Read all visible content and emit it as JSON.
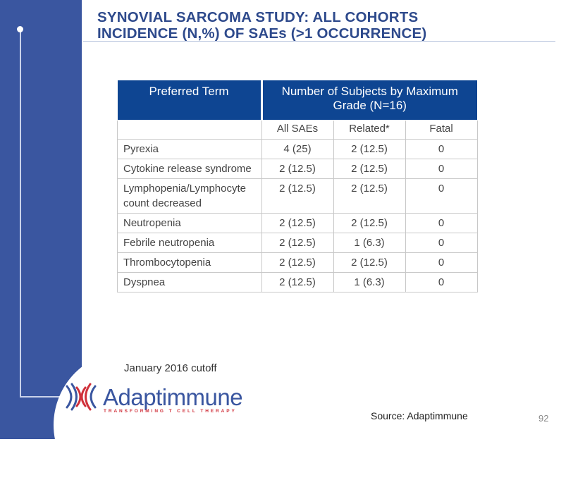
{
  "slide": {
    "title_line1": "SYNOVIAL SARCOMA STUDY: ALL COHORTS",
    "title_line2": "INCIDENCE (N,%) OF SAEs (>1 OCCURRENCE)",
    "cutoff": "January 2016 cutoff",
    "source": "Source: Adaptimmune",
    "page_number": "92"
  },
  "logo": {
    "name": "Adaptimmune",
    "tagline": "TRANSFORMING T CELL THERAPY",
    "colors": {
      "blue": "#3a56a0",
      "red": "#d0303a"
    }
  },
  "table": {
    "header_term": "Preferred Term",
    "header_group": "Number of Subjects by Maximum Grade (N=16)",
    "subheaders": [
      "All SAEs",
      "Related*",
      "Fatal"
    ],
    "rows": [
      {
        "term": "Pyrexia",
        "all": "4 (25)",
        "related": "2 (12.5)",
        "fatal": "0"
      },
      {
        "term": "Cytokine release syndrome",
        "all": "2 (12.5)",
        "related": "2 (12.5)",
        "fatal": "0"
      },
      {
        "term": "Lymphopenia/Lymphocyte count decreased",
        "all": "2 (12.5)",
        "related": "2 (12.5)",
        "fatal": "0"
      },
      {
        "term": "Neutropenia",
        "all": "2 (12.5)",
        "related": "2 (12.5)",
        "fatal": "0"
      },
      {
        "term": "Febrile neutropenia",
        "all": "2 (12.5)",
        "related": "1 (6.3)",
        "fatal": "0"
      },
      {
        "term": "Thrombocytopenia",
        "all": "2 (12.5)",
        "related": "2 (12.5)",
        "fatal": "0"
      },
      {
        "term": "Dyspnea",
        "all": "2 (12.5)",
        "related": "1 (6.3)",
        "fatal": "0"
      }
    ]
  },
  "colors": {
    "sidebar": "#3a56a0",
    "title": "#2e4a8c",
    "table_header": "#0e4592"
  }
}
